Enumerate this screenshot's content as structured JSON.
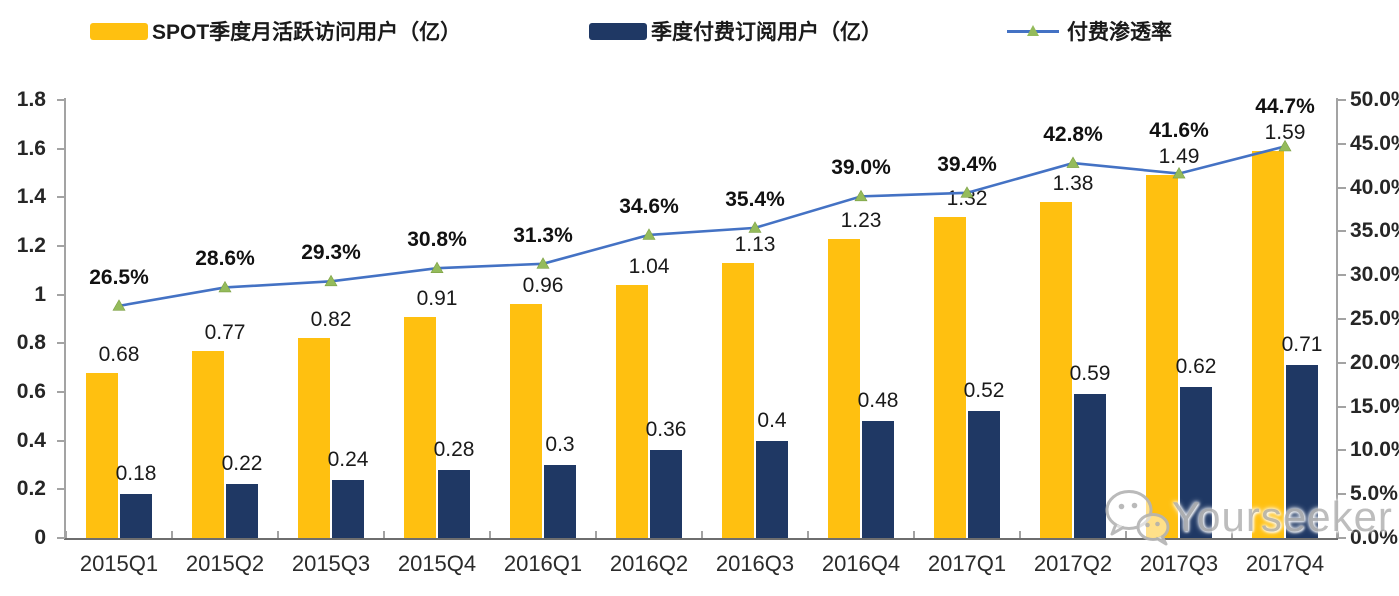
{
  "legend": {
    "items": [
      {
        "label": "SPOT季度月活跃访问用户（亿）",
        "type": "bar",
        "color": "#FFC010"
      },
      {
        "label": "季度付费订阅用户（亿）",
        "type": "bar",
        "color": "#1F3864"
      },
      {
        "label": "付费渗透率",
        "type": "line",
        "color": "#4472C4",
        "marker_color": "#94BB5B"
      }
    ]
  },
  "chart_data": {
    "type": "combo (bar + line)",
    "title": "",
    "categories": [
      "2015Q1",
      "2015Q2",
      "2015Q3",
      "2015Q4",
      "2016Q1",
      "2016Q2",
      "2016Q3",
      "2016Q4",
      "2017Q1",
      "2017Q2",
      "2017Q3",
      "2017Q4"
    ],
    "series": [
      {
        "name": "SPOT季度月活跃访问用户（亿）",
        "type": "bar",
        "axis": "left",
        "color": "#FFC010",
        "values": [
          0.68,
          0.77,
          0.82,
          0.91,
          0.96,
          1.04,
          1.13,
          1.23,
          1.32,
          1.38,
          1.49,
          1.59
        ],
        "labels": [
          "0.68",
          "0.77",
          "0.82",
          "0.91",
          "0.96",
          "1.04",
          "1.13",
          "1.23",
          "1.32",
          "1.38",
          "1.49",
          "1.59"
        ]
      },
      {
        "name": "季度付费订阅用户（亿）",
        "type": "bar",
        "axis": "left",
        "color": "#1F3864",
        "values": [
          0.18,
          0.22,
          0.24,
          0.28,
          0.3,
          0.36,
          0.4,
          0.48,
          0.52,
          0.59,
          0.62,
          0.71
        ],
        "labels": [
          "0.18",
          "0.22",
          "0.24",
          "0.28",
          "0.3",
          "0.36",
          "0.4",
          "0.48",
          "0.52",
          "0.59",
          "0.62",
          "0.71"
        ]
      },
      {
        "name": "付费渗透率",
        "type": "line",
        "axis": "right",
        "color": "#4472C4",
        "marker": "triangle",
        "marker_color": "#94BB5B",
        "values_percent": [
          26.5,
          28.6,
          29.3,
          30.8,
          31.3,
          34.6,
          35.4,
          39.0,
          39.4,
          42.8,
          41.6,
          44.7
        ],
        "labels": [
          "26.5%",
          "28.6%",
          "29.3%",
          "30.8%",
          "31.3%",
          "34.6%",
          "35.4%",
          "39.0%",
          "39.4%",
          "42.8%",
          "41.6%",
          "44.7%"
        ]
      }
    ],
    "left_axis": {
      "min": 0,
      "max": 1.8,
      "tick_labels": [
        "1.8",
        "1.6",
        "1.4",
        "1.2",
        "1",
        "0.8",
        "0.6",
        "0.4",
        "0.2",
        "0"
      ]
    },
    "right_axis": {
      "min": 0,
      "max": 50,
      "tick_labels": [
        "50.0%",
        "45.0%",
        "40.0%",
        "35.0%",
        "30.0%",
        "25.0%",
        "20.0%",
        "15.0%",
        "10.0%",
        "5.0%",
        "0.0%"
      ]
    },
    "grid": false,
    "legend_position": "top"
  },
  "watermark": {
    "text": "Yourseeker",
    "icon": "wechat-icon"
  }
}
